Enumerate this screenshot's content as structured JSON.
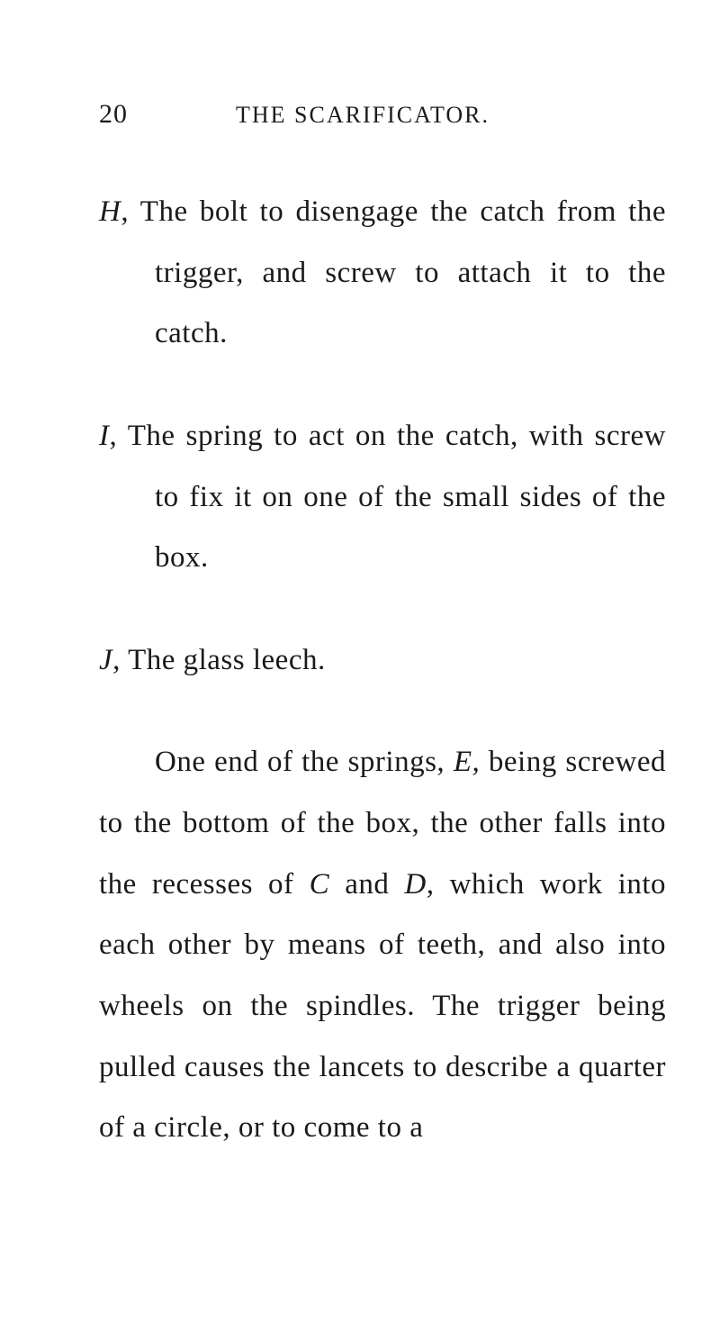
{
  "page": {
    "number": "20",
    "title": "THE SCARIFICATOR."
  },
  "items": {
    "H": {
      "label": "H",
      "sep": ", ",
      "text": "The bolt to disengage the catch from the trigger, and screw to attach it to the catch."
    },
    "I": {
      "label": "I",
      "sep": ", ",
      "text": "The spring to act on the catch, with screw to fix it on one of the small sides of the box."
    },
    "J": {
      "label": "J",
      "sep": ", ",
      "text": "The glass leech."
    }
  },
  "body": {
    "p1_a": "One end of the springs, ",
    "p1_E": "E,",
    "p1_b": " being screwed to the bottom of the box, the other falls into the recesses of ",
    "p1_C": "C",
    "p1_c": " and ",
    "p1_D": "D,",
    "p1_d": " which work into each other by means of teeth, and also into wheels on the spindles. The trigger being pulled causes the lancets to describe a quarter of a circle, or to come to a"
  }
}
